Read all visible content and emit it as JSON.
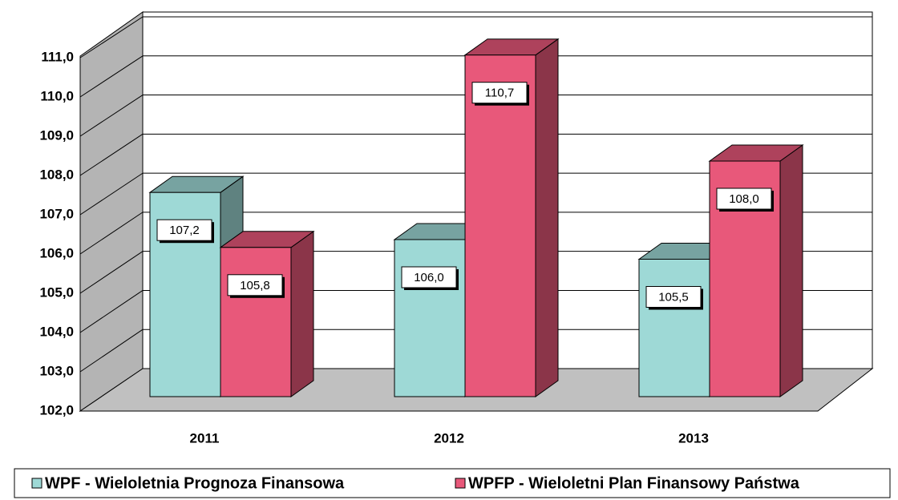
{
  "chart_data": {
    "type": "bar3d",
    "categories": [
      "2011",
      "2012",
      "2013"
    ],
    "series": [
      {
        "name": "WPF - Wieloletnia Prognoza Finansowa",
        "color": "#9ed9d6",
        "values": [
          107.2,
          106.0,
          105.5
        ],
        "value_labels": [
          "107,2",
          "106,0",
          "105,5"
        ]
      },
      {
        "name": "WPFP - Wieloletni Plan Finansowy Państwa",
        "color": "#e8587a",
        "values": [
          105.8,
          110.7,
          108.0
        ],
        "value_labels": [
          "105,8",
          "110,7",
          "108,0"
        ]
      }
    ],
    "ylim": [
      102,
      111
    ],
    "yticks": [
      {
        "value": 102,
        "label": "102,0"
      },
      {
        "value": 103,
        "label": "103,0"
      },
      {
        "value": 104,
        "label": "104,0"
      },
      {
        "value": 105,
        "label": "105,0"
      },
      {
        "value": 106,
        "label": "106,0"
      },
      {
        "value": 107,
        "label": "107,0"
      },
      {
        "value": 108,
        "label": "108,0"
      },
      {
        "value": 109,
        "label": "109,0"
      },
      {
        "value": 110,
        "label": "110,0"
      },
      {
        "value": 111,
        "label": "111,0"
      }
    ],
    "grid": true,
    "legend": "bottom"
  }
}
